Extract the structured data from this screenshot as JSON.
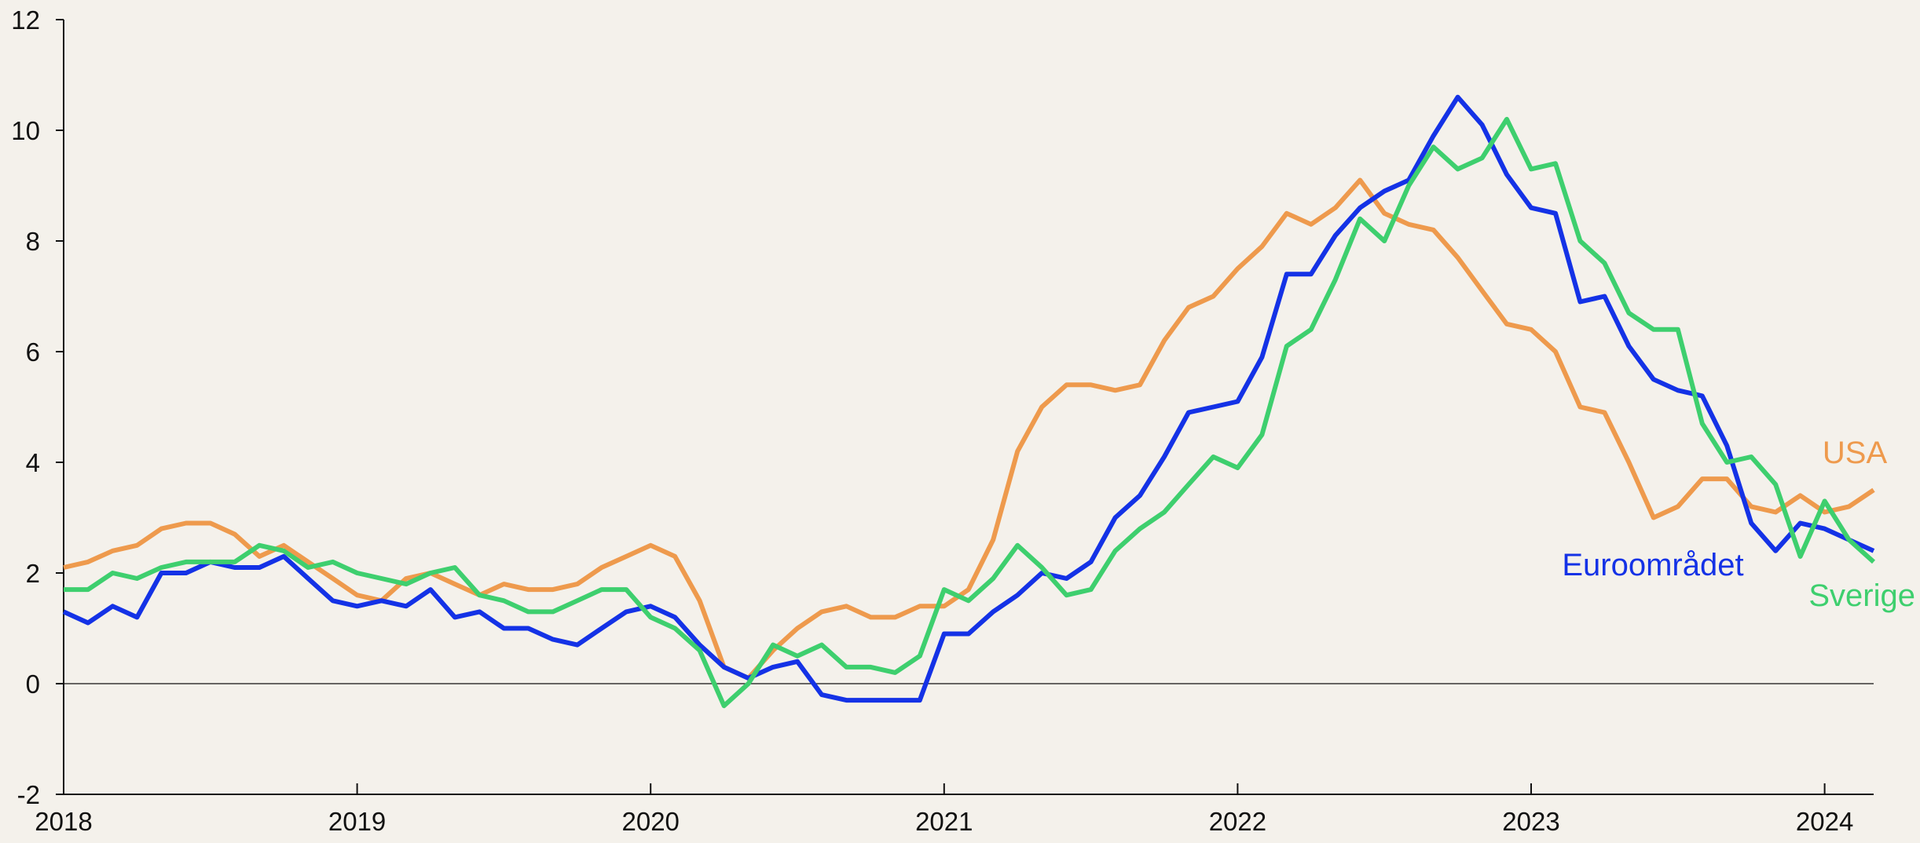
{
  "chart_data": {
    "type": "line",
    "x": [
      2018,
      2018.083,
      2018.167,
      2018.25,
      2018.333,
      2018.417,
      2018.5,
      2018.583,
      2018.667,
      2018.75,
      2018.833,
      2018.917,
      2019,
      2019.083,
      2019.167,
      2019.25,
      2019.333,
      2019.417,
      2019.5,
      2019.583,
      2019.667,
      2019.75,
      2019.833,
      2019.917,
      2020,
      2020.083,
      2020.167,
      2020.25,
      2020.333,
      2020.417,
      2020.5,
      2020.583,
      2020.667,
      2020.75,
      2020.833,
      2020.917,
      2021,
      2021.083,
      2021.167,
      2021.25,
      2021.333,
      2021.417,
      2021.5,
      2021.583,
      2021.667,
      2021.75,
      2021.833,
      2021.917,
      2022,
      2022.083,
      2022.167,
      2022.25,
      2022.333,
      2022.417,
      2022.5,
      2022.583,
      2022.667,
      2022.75,
      2022.833,
      2022.917,
      2023,
      2023.083,
      2023.167,
      2023.25,
      2023.333,
      2023.417,
      2023.5,
      2023.583,
      2023.667,
      2023.75,
      2023.833,
      2023.917,
      2024,
      2024.083,
      2024.167
    ],
    "series": [
      {
        "name": "USA",
        "color": "#ee9a4d",
        "values": [
          2.1,
          2.2,
          2.4,
          2.5,
          2.8,
          2.9,
          2.9,
          2.7,
          2.3,
          2.5,
          2.2,
          1.9,
          1.6,
          1.5,
          1.9,
          2.0,
          1.8,
          1.6,
          1.8,
          1.7,
          1.7,
          1.8,
          2.1,
          2.3,
          2.5,
          2.3,
          1.5,
          0.3,
          0.1,
          0.6,
          1.0,
          1.3,
          1.4,
          1.2,
          1.2,
          1.4,
          1.4,
          1.7,
          2.6,
          4.2,
          5.0,
          5.4,
          5.4,
          5.3,
          5.4,
          6.2,
          6.8,
          7.0,
          7.5,
          7.9,
          8.5,
          8.3,
          8.6,
          9.1,
          8.5,
          8.3,
          8.2,
          7.7,
          7.1,
          6.5,
          6.4,
          6.0,
          5.0,
          4.9,
          4.0,
          3.0,
          3.2,
          3.7,
          3.7,
          3.2,
          3.1,
          3.4,
          3.1,
          3.2,
          3.5
        ]
      },
      {
        "name": "Euroområdet",
        "color": "#1432e6",
        "values": [
          1.3,
          1.1,
          1.4,
          1.2,
          2.0,
          2.0,
          2.2,
          2.1,
          2.1,
          2.3,
          1.9,
          1.5,
          1.4,
          1.5,
          1.4,
          1.7,
          1.2,
          1.3,
          1.0,
          1.0,
          0.8,
          0.7,
          1.0,
          1.3,
          1.4,
          1.2,
          0.7,
          0.3,
          0.1,
          0.3,
          0.4,
          -0.2,
          -0.3,
          -0.3,
          -0.3,
          -0.3,
          0.9,
          0.9,
          1.3,
          1.6,
          2.0,
          1.9,
          2.2,
          3.0,
          3.4,
          4.1,
          4.9,
          5.0,
          5.1,
          5.9,
          7.4,
          7.4,
          8.1,
          8.6,
          8.9,
          9.1,
          9.9,
          10.6,
          10.1,
          9.2,
          8.6,
          8.5,
          6.9,
          7.0,
          6.1,
          5.5,
          5.3,
          5.2,
          4.3,
          2.9,
          2.4,
          2.9,
          2.8,
          2.6,
          2.4
        ]
      },
      {
        "name": "Sverige",
        "color": "#3ecf6e",
        "values": [
          1.7,
          1.7,
          2.0,
          1.9,
          2.1,
          2.2,
          2.2,
          2.2,
          2.5,
          2.4,
          2.1,
          2.2,
          2.0,
          1.9,
          1.8,
          2.0,
          2.1,
          1.6,
          1.5,
          1.3,
          1.3,
          1.5,
          1.7,
          1.7,
          1.2,
          1.0,
          0.6,
          -0.4,
          0.0,
          0.7,
          0.5,
          0.7,
          0.3,
          0.3,
          0.2,
          0.5,
          1.7,
          1.5,
          1.9,
          2.5,
          2.1,
          1.6,
          1.7,
          2.4,
          2.8,
          3.1,
          3.6,
          4.1,
          3.9,
          4.5,
          6.1,
          6.4,
          7.3,
          8.4,
          8.0,
          9.0,
          9.7,
          9.3,
          9.5,
          10.2,
          9.3,
          9.4,
          8.0,
          7.6,
          6.7,
          6.4,
          6.4,
          4.7,
          4.0,
          4.1,
          3.6,
          2.3,
          3.3,
          2.6,
          2.2
        ]
      }
    ],
    "xlim": [
      2018,
      2024.167
    ],
    "xticks": [
      2018,
      2019,
      2020,
      2021,
      2022,
      2023,
      2024
    ],
    "ylim": [
      -2,
      12
    ],
    "yticks": [
      -2,
      0,
      2,
      4,
      6,
      8,
      10,
      12
    ]
  }
}
